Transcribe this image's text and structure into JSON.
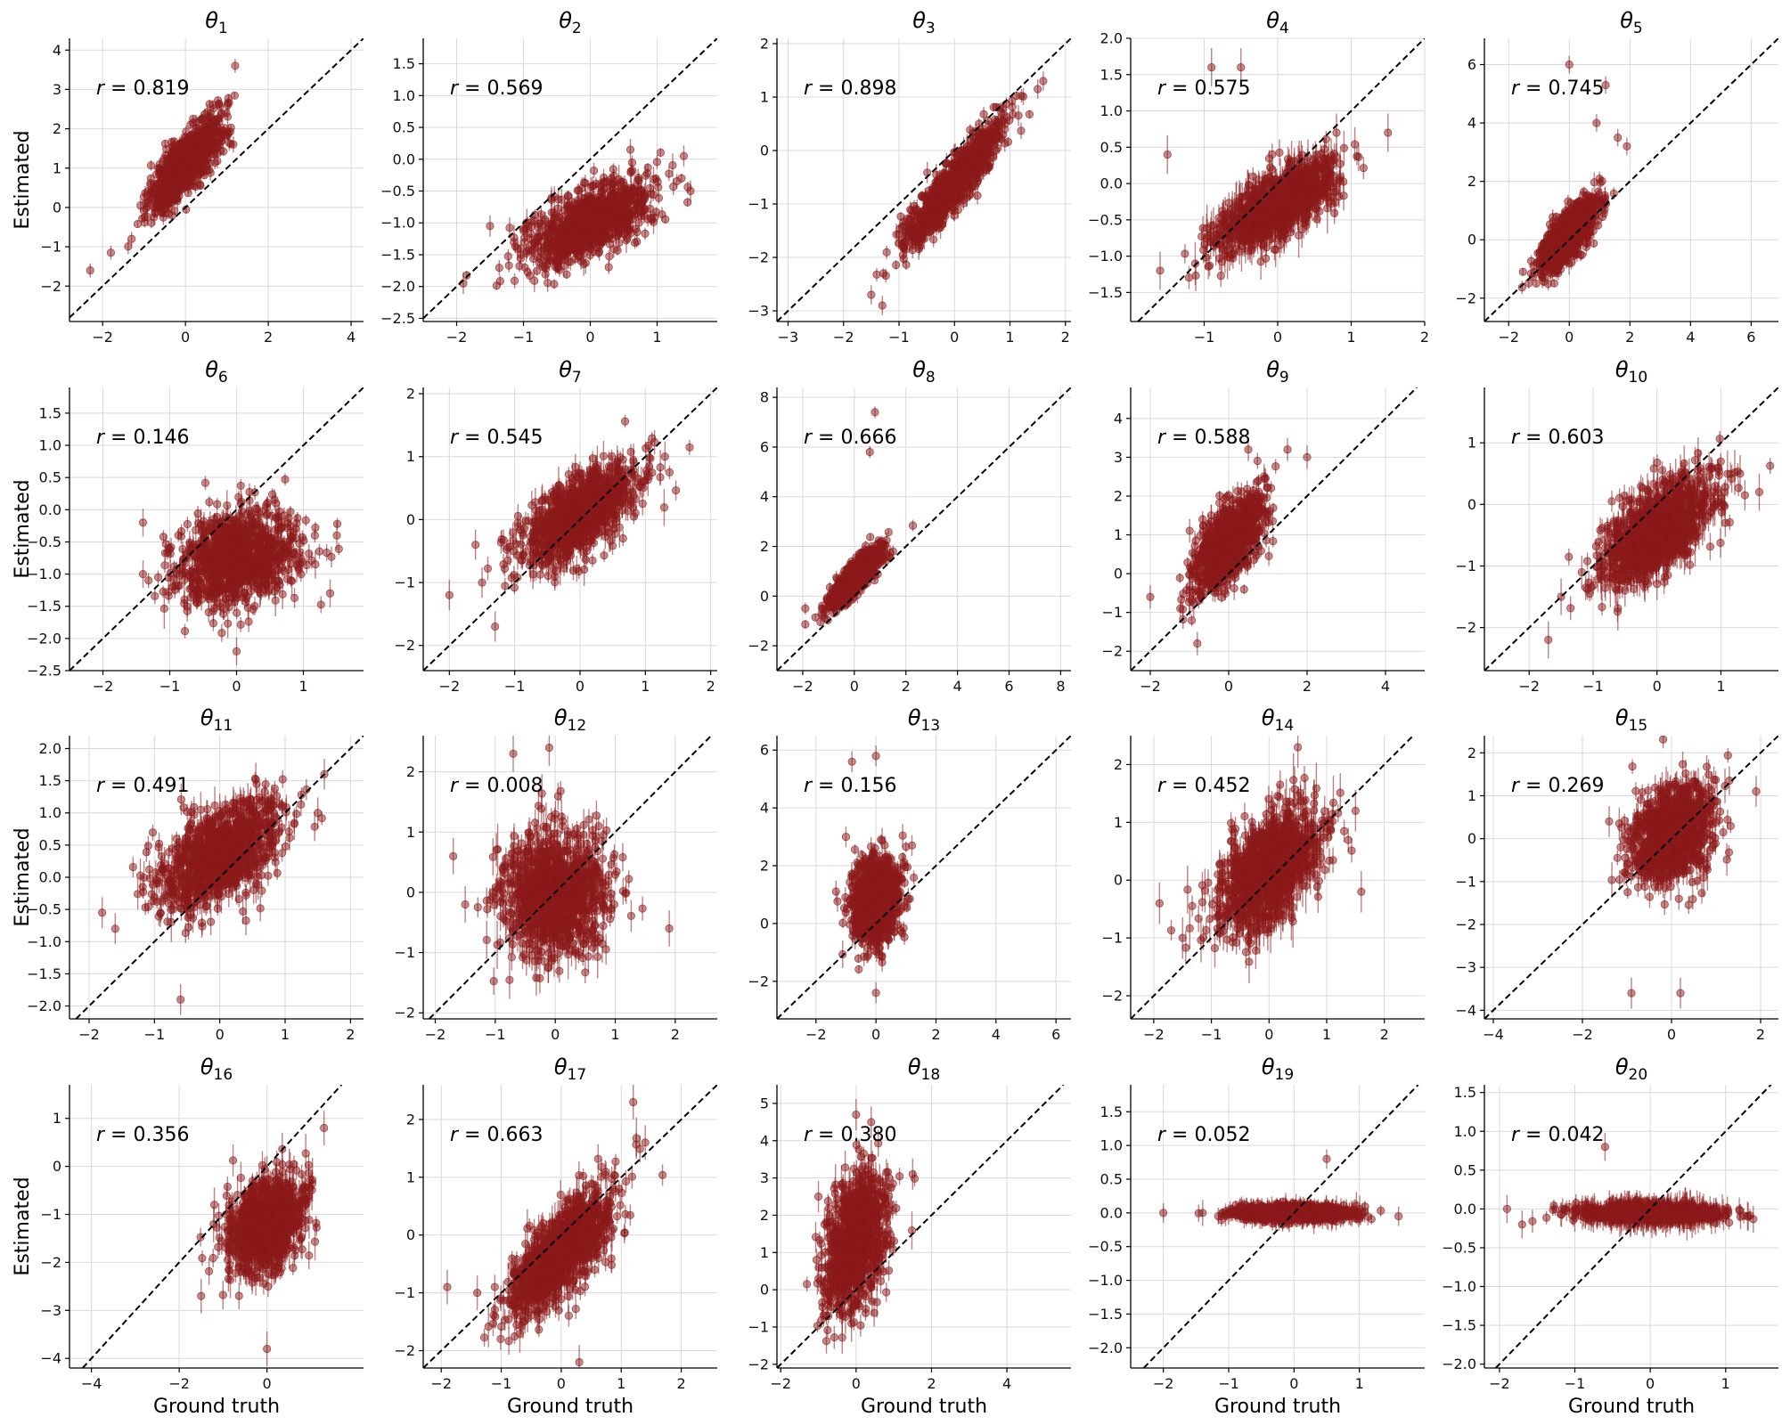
{
  "figure": {
    "xlabel": "Ground truth",
    "ylabel": "Estimated",
    "marker_color": "#8b1a1a",
    "r_prefix": "r = "
  },
  "chart_data": [
    {
      "type": "scatter",
      "title": "θ",
      "subscript": "1",
      "r": "0.819",
      "xlim": [
        -2.8,
        4.3
      ],
      "ylim": [
        -2.9,
        4.3
      ],
      "xticks": [
        -2,
        0,
        2,
        4
      ],
      "yticks": [
        -2,
        -1,
        0,
        1,
        2,
        3,
        4
      ],
      "n": 1000,
      "x_mean": 0,
      "x_sd": 0.42,
      "slope": 1.05,
      "intercept": 1.1,
      "noise_sd": 0.35,
      "err": 0.15,
      "outliers": [
        [
          -2.3,
          -1.6
        ],
        [
          -1.8,
          -1.15
        ],
        [
          1.2,
          3.6
        ],
        [
          -1.3,
          -0.8
        ]
      ]
    },
    {
      "type": "scatter",
      "title": "θ",
      "subscript": "2",
      "r": "0.569",
      "xlim": [
        -2.5,
        1.9
      ],
      "ylim": [
        -2.55,
        1.9
      ],
      "xticks": [
        -2,
        -1,
        0,
        1
      ],
      "yticks": [
        -2.5,
        -2.0,
        -1.5,
        -1.0,
        -0.5,
        0.0,
        0.5,
        1.0,
        1.5
      ],
      "n": 1000,
      "x_mean": 0,
      "x_sd": 0.45,
      "slope": 0.45,
      "intercept": -1.0,
      "noise_sd": 0.25,
      "err": 0.14,
      "outliers": [
        [
          -1.9,
          -1.95
        ],
        [
          -1.5,
          -1.05
        ],
        [
          1.4,
          0.05
        ],
        [
          1.5,
          -0.5
        ],
        [
          0.6,
          0.15
        ]
      ]
    },
    {
      "type": "scatter",
      "title": "θ",
      "subscript": "3",
      "r": "0.898",
      "xlim": [
        -3.2,
        2.1
      ],
      "ylim": [
        -3.2,
        2.1
      ],
      "xticks": [
        -3,
        -2,
        -1,
        0,
        1,
        2
      ],
      "yticks": [
        -3,
        -2,
        -1,
        0,
        1,
        2
      ],
      "n": 1000,
      "x_mean": 0,
      "x_sd": 0.45,
      "slope": 1.2,
      "intercept": -0.6,
      "noise_sd": 0.22,
      "err": 0.15,
      "outliers": [
        [
          1.6,
          1.3
        ],
        [
          1.5,
          1.15
        ],
        [
          -1.5,
          -2.7
        ],
        [
          -1.3,
          -2.9
        ]
      ]
    },
    {
      "type": "scatter",
      "title": "θ",
      "subscript": "4",
      "r": "0.575",
      "xlim": [
        -2.0,
        2.0
      ],
      "ylim": [
        -1.9,
        2.0
      ],
      "xticks": [
        -1,
        0,
        1,
        2
      ],
      "yticks": [
        -1.5,
        -1.0,
        -0.5,
        0.0,
        0.5,
        1.0,
        1.5,
        2.0
      ],
      "n": 1000,
      "x_mean": 0,
      "x_sd": 0.42,
      "slope": 0.55,
      "intercept": -0.3,
      "noise_sd": 0.22,
      "err": 0.22,
      "outliers": [
        [
          -1.5,
          0.4
        ],
        [
          -0.9,
          1.6
        ],
        [
          -0.5,
          1.6
        ],
        [
          0.8,
          0.7
        ],
        [
          1.5,
          0.7
        ],
        [
          -1.6,
          -1.2
        ]
      ]
    },
    {
      "type": "scatter",
      "title": "θ",
      "subscript": "5",
      "r": "0.745",
      "xlim": [
        -2.8,
        6.9
      ],
      "ylim": [
        -2.8,
        6.9
      ],
      "xticks": [
        -2,
        0,
        2,
        4,
        6
      ],
      "yticks": [
        -2,
        0,
        2,
        4,
        6
      ],
      "n": 1000,
      "x_mean": 0,
      "x_sd": 0.45,
      "slope": 1.0,
      "intercept": 0.2,
      "noise_sd": 0.4,
      "err": 0.25,
      "outliers": [
        [
          0,
          6
        ],
        [
          1.2,
          5.3
        ],
        [
          1.9,
          3.2
        ],
        [
          1.6,
          3.5
        ],
        [
          0.9,
          4.0
        ]
      ]
    },
    {
      "type": "scatter",
      "title": "θ",
      "subscript": "6",
      "r": "0.146",
      "xlim": [
        -2.5,
        1.9
      ],
      "ylim": [
        -2.5,
        1.9
      ],
      "xticks": [
        -2,
        -1,
        0,
        1
      ],
      "yticks": [
        -2.5,
        -2.0,
        -1.5,
        -1.0,
        -0.5,
        0.0,
        0.5,
        1.0,
        1.5
      ],
      "n": 1000,
      "x_mean": 0,
      "x_sd": 0.45,
      "slope": 0.15,
      "intercept": -0.75,
      "noise_sd": 0.35,
      "err": 0.18,
      "outliers": [
        [
          -1.4,
          -0.2
        ],
        [
          -1.4,
          -1.0
        ],
        [
          1.5,
          -0.4
        ],
        [
          1.4,
          -1.3
        ],
        [
          0,
          -2.2
        ]
      ]
    },
    {
      "type": "scatter",
      "title": "θ",
      "subscript": "7",
      "r": "0.545",
      "xlim": [
        -2.4,
        2.1
      ],
      "ylim": [
        -2.4,
        2.1
      ],
      "xticks": [
        -2,
        -1,
        0,
        1,
        2
      ],
      "yticks": [
        -2,
        -1,
        0,
        1,
        2
      ],
      "n": 1000,
      "x_mean": 0,
      "x_sd": 0.45,
      "slope": 0.6,
      "intercept": 0.1,
      "noise_sd": 0.3,
      "err": 0.2,
      "outliers": [
        [
          -2.0,
          -1.2
        ],
        [
          -1.6,
          -0.4
        ],
        [
          -1.5,
          -1.0
        ],
        [
          -1.3,
          -1.7
        ],
        [
          1.3,
          1.0
        ]
      ]
    },
    {
      "type": "scatter",
      "title": "θ",
      "subscript": "8",
      "r": "0.666",
      "xlim": [
        -3.0,
        8.4
      ],
      "ylim": [
        -3.0,
        8.4
      ],
      "xticks": [
        -2,
        0,
        2,
        4,
        6,
        8
      ],
      "yticks": [
        -2,
        0,
        2,
        4,
        6,
        8
      ],
      "n": 1000,
      "x_mean": 0,
      "x_sd": 0.5,
      "slope": 1.0,
      "intercept": 0.7,
      "noise_sd": 0.3,
      "err": 0.2,
      "outliers": [
        [
          0.8,
          7.4
        ],
        [
          0.6,
          5.8
        ],
        [
          -1.9,
          -0.5
        ],
        [
          1.5,
          1.8
        ]
      ]
    },
    {
      "type": "scatter",
      "title": "θ",
      "subscript": "9",
      "r": "0.588",
      "xlim": [
        -2.5,
        5.0
      ],
      "ylim": [
        -2.5,
        4.8
      ],
      "xticks": [
        -2,
        0,
        2,
        4
      ],
      "yticks": [
        -2,
        -1,
        0,
        1,
        2,
        3,
        4
      ],
      "n": 1000,
      "x_mean": 0,
      "x_sd": 0.45,
      "slope": 0.9,
      "intercept": 0.8,
      "noise_sd": 0.45,
      "err": 0.25,
      "outliers": [
        [
          2.0,
          3.0
        ],
        [
          1.5,
          3.2
        ],
        [
          -2.0,
          -0.6
        ],
        [
          -0.8,
          -1.8
        ],
        [
          0.5,
          3.2
        ]
      ]
    },
    {
      "type": "scatter",
      "title": "θ",
      "subscript": "10",
      "r": "0.603",
      "xlim": [
        -2.7,
        1.9
      ],
      "ylim": [
        -2.7,
        1.9
      ],
      "xticks": [
        -2,
        -1,
        0,
        1
      ],
      "yticks": [
        -2,
        -1,
        0,
        1
      ],
      "n": 1000,
      "x_mean": 0,
      "x_sd": 0.45,
      "slope": 0.6,
      "intercept": -0.4,
      "noise_sd": 0.35,
      "err": 0.25,
      "outliers": [
        [
          1.6,
          0.2
        ],
        [
          1.3,
          0.5
        ],
        [
          -1.7,
          -2.2
        ],
        [
          -1.5,
          -1.5
        ]
      ]
    },
    {
      "type": "scatter",
      "title": "θ",
      "subscript": "11",
      "r": "0.491",
      "xlim": [
        -2.3,
        2.2
      ],
      "ylim": [
        -2.2,
        2.2
      ],
      "xticks": [
        -2,
        -1,
        0,
        1,
        2
      ],
      "yticks": [
        -2.0,
        -1.5,
        -1.0,
        -0.5,
        0.0,
        0.5,
        1.0,
        1.5,
        2.0
      ],
      "n": 1000,
      "x_mean": 0,
      "x_sd": 0.45,
      "slope": 0.5,
      "intercept": 0.35,
      "noise_sd": 0.35,
      "err": 0.2,
      "outliers": [
        [
          -1.8,
          -0.55
        ],
        [
          -1.6,
          -0.8
        ],
        [
          1.6,
          1.6
        ],
        [
          -0.6,
          -1.9
        ],
        [
          1.5,
          1.0
        ]
      ]
    },
    {
      "type": "scatter",
      "title": "θ",
      "subscript": "12",
      "r": "0.008",
      "xlim": [
        -2.2,
        2.7
      ],
      "ylim": [
        -2.1,
        2.6
      ],
      "xticks": [
        -2,
        -1,
        0,
        1,
        2
      ],
      "yticks": [
        -2,
        -1,
        0,
        1,
        2
      ],
      "n": 1000,
      "x_mean": 0,
      "x_sd": 0.45,
      "slope": 0.01,
      "intercept": 0,
      "noise_sd": 0.5,
      "err": 0.25,
      "outliers": [
        [
          -1.7,
          0.6
        ],
        [
          -1.5,
          -0.2
        ],
        [
          1.9,
          -0.6
        ],
        [
          -0.7,
          2.3
        ],
        [
          -0.1,
          2.4
        ]
      ]
    },
    {
      "type": "scatter",
      "title": "θ",
      "subscript": "13",
      "r": "0.156",
      "xlim": [
        -3.3,
        6.5
      ],
      "ylim": [
        -3.3,
        6.5
      ],
      "xticks": [
        -2,
        0,
        2,
        4,
        6
      ],
      "yticks": [
        -2,
        0,
        2,
        4,
        6
      ],
      "n": 1000,
      "x_mean": 0,
      "x_sd": 0.4,
      "slope": 0.3,
      "intercept": 0.8,
      "noise_sd": 0.75,
      "err": 0.3,
      "outliers": [
        [
          -1.0,
          3.0
        ],
        [
          0,
          5.8
        ],
        [
          -0.8,
          5.6
        ],
        [
          1.2,
          2.7
        ],
        [
          0,
          -2.4
        ]
      ]
    },
    {
      "type": "scatter",
      "title": "θ",
      "subscript": "14",
      "r": "0.452",
      "xlim": [
        -2.4,
        2.7
      ],
      "ylim": [
        -2.4,
        2.5
      ],
      "xticks": [
        -2,
        -1,
        0,
        1,
        2
      ],
      "yticks": [
        -2,
        -1,
        0,
        1,
        2
      ],
      "n": 1000,
      "x_mean": 0,
      "x_sd": 0.45,
      "slope": 0.6,
      "intercept": 0.2,
      "noise_sd": 0.45,
      "err": 0.3,
      "outliers": [
        [
          -1.9,
          -0.4
        ],
        [
          -1.5,
          -1.0
        ],
        [
          1.6,
          -0.2
        ],
        [
          0.5,
          2.3
        ],
        [
          1.5,
          1.2
        ]
      ]
    },
    {
      "type": "scatter",
      "title": "θ",
      "subscript": "15",
      "r": "0.269",
      "xlim": [
        -4.2,
        2.4
      ],
      "ylim": [
        -4.2,
        2.4
      ],
      "xticks": [
        -4,
        -2,
        0,
        2
      ],
      "yticks": [
        -4,
        -3,
        -2,
        -1,
        0,
        1,
        2
      ],
      "n": 1000,
      "x_mean": 0,
      "x_sd": 0.45,
      "slope": 0.3,
      "intercept": 0.1,
      "noise_sd": 0.55,
      "err": 0.3,
      "outliers": [
        [
          -0.9,
          -3.6
        ],
        [
          0.2,
          -3.6
        ],
        [
          1.9,
          1.1
        ],
        [
          -1.4,
          0.4
        ]
      ]
    },
    {
      "type": "scatter",
      "title": "θ",
      "subscript": "16",
      "r": "0.356",
      "xlim": [
        -4.5,
        2.2
      ],
      "ylim": [
        -4.2,
        1.7
      ],
      "xticks": [
        -4,
        -2,
        0
      ],
      "yticks": [
        -4,
        -3,
        -2,
        -1,
        0,
        1
      ],
      "n": 1000,
      "x_mean": 0,
      "x_sd": 0.45,
      "slope": 0.4,
      "intercept": -1.2,
      "noise_sd": 0.45,
      "err": 0.3,
      "outliers": [
        [
          -1.5,
          -2.7
        ],
        [
          -1.2,
          -0.8
        ],
        [
          1.3,
          0.8
        ],
        [
          0,
          -3.8
        ]
      ]
    },
    {
      "type": "scatter",
      "title": "θ",
      "subscript": "17",
      "r": "0.663",
      "xlim": [
        -2.3,
        2.6
      ],
      "ylim": [
        -2.3,
        2.6
      ],
      "xticks": [
        -2,
        -1,
        0,
        1,
        2
      ],
      "yticks": [
        -2,
        -1,
        0,
        1,
        2
      ],
      "n": 1000,
      "x_mean": 0,
      "x_sd": 0.45,
      "slope": 0.9,
      "intercept": -0.3,
      "noise_sd": 0.35,
      "err": 0.25,
      "outliers": [
        [
          -1.9,
          -0.9
        ],
        [
          -1.4,
          -1.0
        ],
        [
          1.4,
          1.6
        ],
        [
          1.2,
          2.3
        ],
        [
          0.3,
          -2.2
        ]
      ]
    },
    {
      "type": "scatter",
      "title": "θ",
      "subscript": "18",
      "r": "0.380",
      "xlim": [
        -2.1,
        5.7
      ],
      "ylim": [
        -2.1,
        5.5
      ],
      "xticks": [
        -2,
        0,
        2,
        4
      ],
      "yticks": [
        -2,
        -1,
        0,
        1,
        2,
        3,
        4,
        5
      ],
      "n": 1000,
      "x_mean": 0,
      "x_sd": 0.4,
      "slope": 0.8,
      "intercept": 1.3,
      "noise_sd": 0.85,
      "err": 0.35,
      "outliers": [
        [
          0,
          4.7
        ],
        [
          0.4,
          4.5
        ],
        [
          1.5,
          3.1
        ],
        [
          -1.0,
          2.5
        ]
      ]
    },
    {
      "type": "scatter",
      "title": "θ",
      "subscript": "19",
      "r": "0.052",
      "xlim": [
        -2.5,
        2.0
      ],
      "ylim": [
        -2.3,
        1.9
      ],
      "xticks": [
        -2,
        -1,
        0,
        1
      ],
      "yticks": [
        -2.0,
        -1.5,
        -1.0,
        -0.5,
        0.0,
        0.5,
        1.0,
        1.5
      ],
      "n": 1000,
      "x_mean": 0,
      "x_sd": 0.45,
      "slope": 0,
      "intercept": 0,
      "noise_sd": 0.05,
      "err": 0.12,
      "outliers": [
        [
          -2.0,
          0
        ],
        [
          1.6,
          -0.05
        ],
        [
          -0.8,
          0.1
        ],
        [
          0.5,
          0.8
        ]
      ]
    },
    {
      "type": "scatter",
      "title": "θ",
      "subscript": "20",
      "r": "0.042",
      "xlim": [
        -2.2,
        1.7
      ],
      "ylim": [
        -2.05,
        1.6
      ],
      "xticks": [
        -2,
        -1,
        0,
        1
      ],
      "yticks": [
        -2.0,
        -1.5,
        -1.0,
        -0.5,
        0.0,
        0.5,
        1.0,
        1.5
      ],
      "n": 1000,
      "x_mean": 0,
      "x_sd": 0.45,
      "slope": 0,
      "intercept": -0.05,
      "noise_sd": 0.05,
      "err": 0.15,
      "outliers": [
        [
          -1.9,
          0
        ],
        [
          -1.7,
          -0.2
        ],
        [
          1.3,
          -0.1
        ],
        [
          -0.6,
          0.8
        ]
      ]
    }
  ]
}
